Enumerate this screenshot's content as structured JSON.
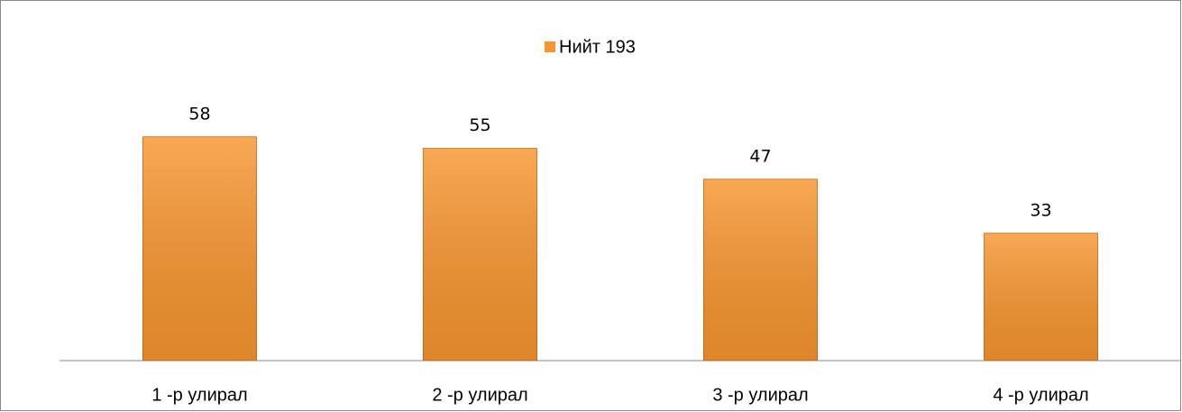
{
  "chart_data": {
    "type": "bar",
    "legend": "Нийт 193",
    "categories": [
      "1 -р улирал",
      "2 -р улирал",
      "3 -р улирал",
      "4 -р улирал"
    ],
    "values": [
      58,
      55,
      47,
      33
    ],
    "color": "#f7952f"
  }
}
